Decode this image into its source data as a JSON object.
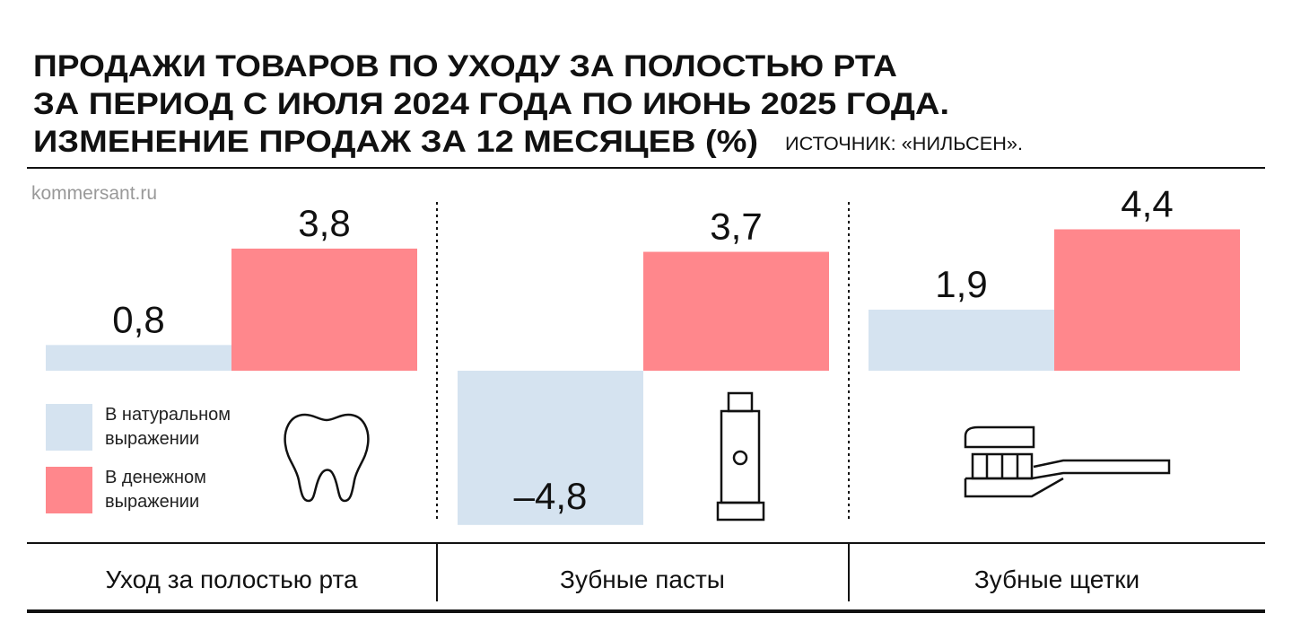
{
  "chart_data": {
    "type": "bar",
    "title": [
      "ПРОДАЖИ ТОВАРОВ ПО УХОДУ ЗА ПОЛОСТЬЮ РТА",
      "ЗА ПЕРИОД С ИЮЛЯ 2024 ГОДА ПО ИЮНЬ 2025 ГОДА.",
      "ИЗМЕНЕНИЕ ПРОДАЖ ЗА 12 МЕСЯЦЕВ (%)"
    ],
    "source": "ИСТОЧНИК: «НИЛЬСЕН».",
    "watermark": "kommersant.ru",
    "categories": [
      "Уход за полостью рта",
      "Зубные пасты",
      "Зубные щетки"
    ],
    "series": [
      {
        "name": "В натуральном выражении",
        "color": "#d5e3f0",
        "values": [
          0.8,
          -4.8,
          1.9
        ],
        "value_labels": [
          "0,8",
          "–4,8",
          "1,9"
        ]
      },
      {
        "name": "В денежном выражении",
        "color": "#ff878c",
        "values": [
          3.8,
          3.7,
          4.4
        ],
        "value_labels": [
          "3,8",
          "3,7",
          "4,4"
        ]
      }
    ]
  }
}
